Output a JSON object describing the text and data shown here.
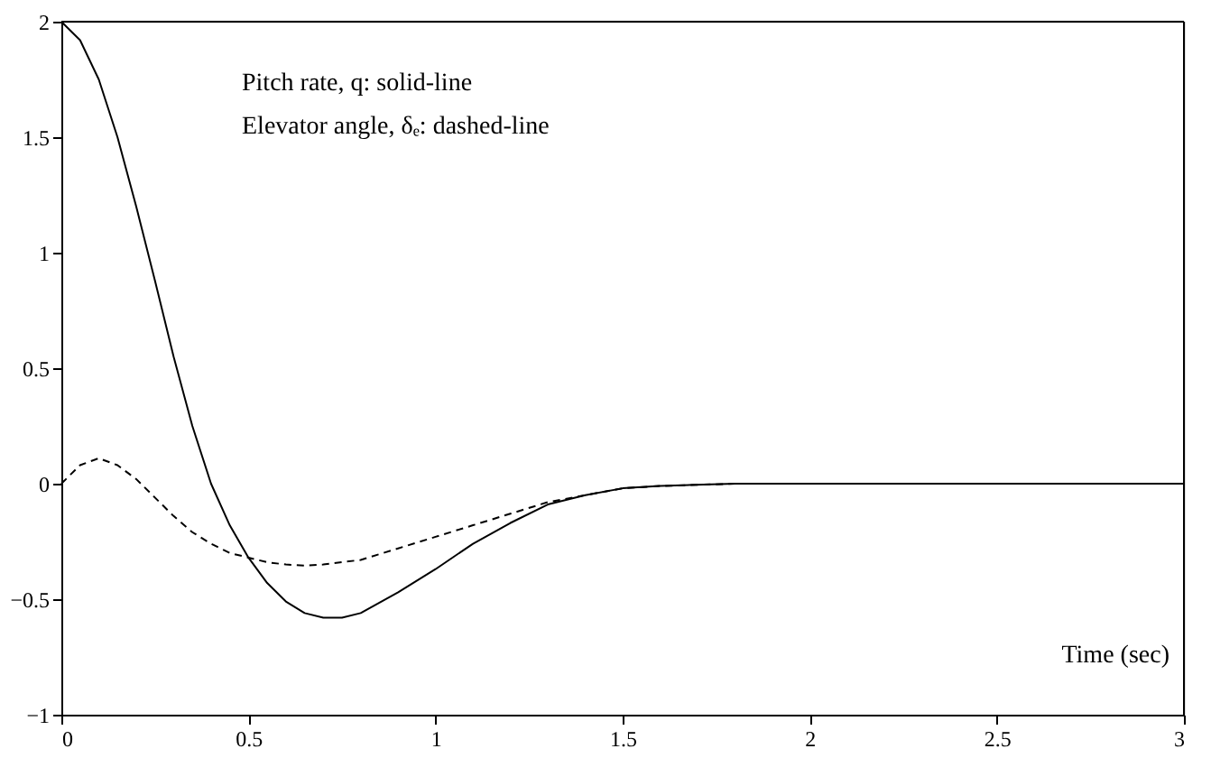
{
  "chart_data": {
    "type": "line",
    "xlabel": "Time (sec)",
    "annotations": [
      "Pitch rate, q: solid-line",
      "Elevator angle, δₑ: dashed-line"
    ],
    "xlim": [
      0,
      3
    ],
    "ylim": [
      -1,
      2
    ],
    "xticks": [
      0,
      0.5,
      1,
      1.5,
      2,
      2.5,
      3
    ],
    "yticks": [
      -1,
      -0.5,
      0,
      0.5,
      1,
      1.5,
      2
    ],
    "grid": false,
    "marker": "none",
    "series": [
      {
        "color": "#000000",
        "line_style": "solid",
        "x": [
          0,
          0.05,
          0.1,
          0.15,
          0.2,
          0.25,
          0.3,
          0.35,
          0.4,
          0.45,
          0.5,
          0.55,
          0.6,
          0.65,
          0.7,
          0.75,
          0.8,
          0.9,
          1.0,
          1.1,
          1.2,
          1.3,
          1.4,
          1.5,
          1.6,
          1.8,
          2.0,
          2.5,
          3.0
        ],
        "values": [
          2,
          1.92,
          1.75,
          1.5,
          1.2,
          0.88,
          0.55,
          0.25,
          0.0,
          -0.18,
          -0.32,
          -0.43,
          -0.51,
          -0.56,
          -0.58,
          -0.58,
          -0.56,
          -0.47,
          -0.37,
          -0.26,
          -0.17,
          -0.09,
          -0.05,
          -0.02,
          -0.01,
          0,
          0,
          0,
          0
        ]
      },
      {
        "color": "#000000",
        "line_style": "dashed",
        "x": [
          0,
          0.05,
          0.1,
          0.15,
          0.2,
          0.25,
          0.3,
          0.35,
          0.4,
          0.45,
          0.5,
          0.55,
          0.6,
          0.65,
          0.7,
          0.8,
          0.9,
          1.0,
          1.1,
          1.2,
          1.3,
          1.4,
          1.5,
          1.6,
          1.8,
          2.0,
          2.5,
          3.0
        ],
        "values": [
          0,
          0.08,
          0.11,
          0.08,
          0.02,
          -0.06,
          -0.14,
          -0.21,
          -0.26,
          -0.3,
          -0.32,
          -0.34,
          -0.35,
          -0.355,
          -0.35,
          -0.33,
          -0.28,
          -0.23,
          -0.18,
          -0.13,
          -0.08,
          -0.05,
          -0.02,
          -0.01,
          0,
          0,
          0,
          0
        ]
      }
    ]
  }
}
